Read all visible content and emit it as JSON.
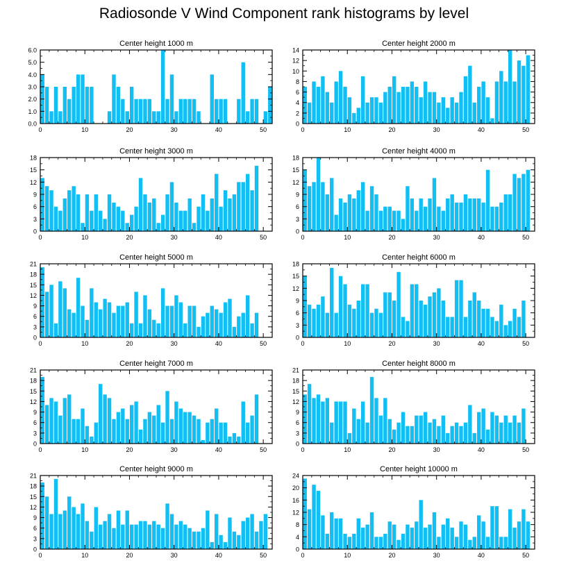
{
  "title": "Radiosonde V Wind Component rank histograms by level",
  "colors": {
    "bar": "#11BFF4",
    "axis": "#000000",
    "background": "#ffffff"
  },
  "chart_data": [
    {
      "type": "bar",
      "title": "Center height 1000 m",
      "xlim": [
        0,
        52
      ],
      "ylim": [
        0,
        6
      ],
      "yticks": [
        "0.0",
        "1.0",
        "2.0",
        "3.0",
        "4.0",
        "5.0",
        "6.0"
      ],
      "ytick_values": [
        0,
        1,
        2,
        3,
        4,
        5,
        6
      ],
      "xticks": [
        "0",
        "10",
        "20",
        "30",
        "40",
        "50"
      ],
      "xtick_values": [
        0,
        10,
        20,
        30,
        40,
        50
      ],
      "values": [
        4,
        3,
        1,
        3,
        1,
        3,
        2,
        3,
        4,
        4,
        3,
        3,
        0,
        0,
        0,
        1,
        4,
        3,
        2,
        1,
        3,
        2,
        2,
        2,
        2,
        1,
        1,
        6,
        2,
        4,
        1,
        2,
        2,
        2,
        2,
        1,
        0,
        0,
        4,
        2,
        2,
        2,
        0,
        0,
        2,
        5,
        1,
        2,
        2,
        0,
        1,
        3
      ]
    },
    {
      "type": "bar",
      "title": "Center height 2000 m",
      "xlim": [
        0,
        52
      ],
      "ylim": [
        0,
        14
      ],
      "yticks": [
        "0",
        "2",
        "4",
        "6",
        "8",
        "10",
        "12",
        "14"
      ],
      "ytick_values": [
        0,
        2,
        4,
        6,
        8,
        10,
        12,
        14
      ],
      "xticks": [
        "0",
        "10",
        "20",
        "30",
        "40",
        "50"
      ],
      "xtick_values": [
        0,
        10,
        20,
        30,
        40,
        50
      ],
      "values": [
        7,
        4,
        8,
        7,
        9,
        6,
        4,
        8,
        10,
        7,
        5,
        2,
        3,
        9,
        4,
        5,
        5,
        4,
        6,
        7,
        9,
        6,
        7,
        7,
        8,
        7,
        5,
        8,
        6,
        6,
        4,
        5,
        3,
        5,
        4,
        6,
        9,
        11,
        4,
        7,
        8,
        5,
        1,
        8,
        10,
        8,
        14,
        8,
        12,
        11,
        13,
        0
      ]
    },
    {
      "type": "bar",
      "title": "Center height 3000 m",
      "xlim": [
        0,
        52
      ],
      "ylim": [
        0,
        18
      ],
      "yticks": [
        "0",
        "3",
        "6",
        "9",
        "12",
        "15",
        "18"
      ],
      "ytick_values": [
        0,
        3,
        6,
        9,
        12,
        15,
        18
      ],
      "xticks": [
        "0",
        "10",
        "20",
        "30",
        "40",
        "50"
      ],
      "xtick_values": [
        0,
        10,
        20,
        30,
        40,
        50
      ],
      "values": [
        13,
        11,
        10,
        6,
        5,
        8,
        10,
        11,
        9,
        2,
        9,
        5,
        9,
        5,
        3,
        9,
        7,
        6,
        5,
        2,
        4,
        6,
        13,
        9,
        7,
        8,
        2,
        4,
        9,
        12,
        7,
        5,
        5,
        8,
        2,
        6,
        9,
        5,
        8,
        14,
        6,
        10,
        8,
        9,
        12,
        12,
        14,
        10,
        16,
        0,
        0,
        0
      ]
    },
    {
      "type": "bar",
      "title": "Center height 4000 m",
      "xlim": [
        0,
        52
      ],
      "ylim": [
        0,
        18
      ],
      "yticks": [
        "0",
        "3",
        "6",
        "9",
        "12",
        "15",
        "18"
      ],
      "ytick_values": [
        0,
        3,
        6,
        9,
        12,
        15,
        18
      ],
      "xticks": [
        "0",
        "10",
        "20",
        "30",
        "40",
        "50"
      ],
      "xtick_values": [
        0,
        10,
        20,
        30,
        40,
        50
      ],
      "values": [
        15,
        11,
        12,
        18,
        12,
        9,
        13,
        4,
        8,
        7,
        9,
        8,
        10,
        12,
        5,
        11,
        9,
        5,
        6,
        6,
        5,
        5,
        3,
        11,
        8,
        5,
        8,
        6,
        8,
        13,
        6,
        5,
        8,
        9,
        7,
        7,
        9,
        8,
        8,
        8,
        7,
        15,
        6,
        6,
        7,
        9,
        9,
        14,
        13,
        14,
        15,
        0
      ]
    },
    {
      "type": "bar",
      "title": "Center height 5000 m",
      "xlim": [
        0,
        52
      ],
      "ylim": [
        0,
        21
      ],
      "yticks": [
        "0",
        "3",
        "6",
        "9",
        "12",
        "15",
        "18",
        "21"
      ],
      "ytick_values": [
        0,
        3,
        6,
        9,
        12,
        15,
        18,
        21
      ],
      "xticks": [
        "0",
        "10",
        "20",
        "30",
        "40",
        "50"
      ],
      "xtick_values": [
        0,
        10,
        20,
        30,
        40,
        50
      ],
      "values": [
        20,
        13,
        15,
        4,
        16,
        14,
        8,
        7,
        17,
        9,
        5,
        14,
        10,
        8,
        11,
        10,
        7,
        9,
        9,
        10,
        4,
        13,
        4,
        12,
        8,
        5,
        4,
        14,
        9,
        9,
        12,
        10,
        4,
        9,
        9,
        3,
        6,
        7,
        9,
        8,
        7,
        10,
        11,
        3,
        6,
        7,
        12,
        4,
        7,
        0,
        0,
        0
      ]
    },
    {
      "type": "bar",
      "title": "Center height 6000 m",
      "xlim": [
        0,
        52
      ],
      "ylim": [
        0,
        18
      ],
      "yticks": [
        "0",
        "3",
        "6",
        "9",
        "12",
        "15",
        "18"
      ],
      "ytick_values": [
        0,
        3,
        6,
        9,
        12,
        15,
        18
      ],
      "xticks": [
        "0",
        "10",
        "20",
        "30",
        "40",
        "50"
      ],
      "xtick_values": [
        0,
        10,
        20,
        30,
        40,
        50
      ],
      "values": [
        15,
        8,
        7,
        8,
        10,
        6,
        17,
        6,
        15,
        13,
        8,
        7,
        9,
        13,
        13,
        6,
        7,
        6,
        11,
        11,
        9,
        16,
        5,
        4,
        13,
        13,
        9,
        8,
        10,
        11,
        12,
        9,
        5,
        5,
        14,
        14,
        5,
        9,
        11,
        9,
        7,
        7,
        5,
        4,
        8,
        3,
        4,
        7,
        5,
        9,
        0,
        0
      ]
    },
    {
      "type": "bar",
      "title": "Center height 7000 m",
      "xlim": [
        0,
        52
      ],
      "ylim": [
        0,
        21
      ],
      "yticks": [
        "0",
        "3",
        "6",
        "9",
        "12",
        "15",
        "18",
        "21"
      ],
      "ytick_values": [
        0,
        3,
        6,
        9,
        12,
        15,
        18,
        21
      ],
      "xticks": [
        "0",
        "10",
        "20",
        "30",
        "40",
        "50"
      ],
      "xtick_values": [
        0,
        10,
        20,
        30,
        40,
        50
      ],
      "values": [
        19,
        11,
        13,
        12,
        8,
        13,
        14,
        7,
        7,
        10,
        5,
        2,
        6,
        17,
        14,
        13,
        7,
        9,
        10,
        7,
        11,
        12,
        4,
        7,
        9,
        8,
        11,
        6,
        15,
        7,
        12,
        10,
        9,
        9,
        8,
        7,
        1,
        6,
        7,
        10,
        6,
        6,
        2,
        3,
        2,
        12,
        6,
        8,
        14,
        0,
        0,
        0
      ]
    },
    {
      "type": "bar",
      "title": "Center height 8000 m",
      "xlim": [
        0,
        52
      ],
      "ylim": [
        0,
        21
      ],
      "yticks": [
        "0",
        "3",
        "6",
        "9",
        "12",
        "15",
        "18",
        "21"
      ],
      "ytick_values": [
        0,
        3,
        6,
        9,
        12,
        15,
        18,
        21
      ],
      "xticks": [
        "0",
        "10",
        "20",
        "30",
        "40",
        "50"
      ],
      "xtick_values": [
        0,
        10,
        20,
        30,
        40,
        50
      ],
      "values": [
        14,
        17,
        13,
        14,
        12,
        13,
        6,
        12,
        12,
        12,
        3,
        10,
        7,
        12,
        6,
        19,
        13,
        8,
        13,
        7,
        4,
        6,
        9,
        5,
        5,
        8,
        8,
        9,
        6,
        7,
        5,
        8,
        3,
        5,
        6,
        5,
        6,
        11,
        3,
        9,
        10,
        4,
        9,
        8,
        6,
        8,
        6,
        8,
        6,
        10,
        0,
        0
      ]
    },
    {
      "type": "bar",
      "title": "Center height 9000 m",
      "xlim": [
        0,
        52
      ],
      "ylim": [
        0,
        21
      ],
      "yticks": [
        "0",
        "3",
        "6",
        "9",
        "12",
        "15",
        "18",
        "21"
      ],
      "ytick_values": [
        0,
        3,
        6,
        9,
        12,
        15,
        18,
        21
      ],
      "xticks": [
        "0",
        "10",
        "20",
        "30",
        "40",
        "50"
      ],
      "xtick_values": [
        0,
        10,
        20,
        30,
        40,
        50
      ],
      "values": [
        19,
        15,
        10,
        20,
        10,
        11,
        15,
        12,
        10,
        13,
        8,
        5,
        12,
        7,
        8,
        10,
        6,
        11,
        7,
        11,
        7,
        7,
        8,
        8,
        7,
        8,
        7,
        6,
        13,
        10,
        7,
        8,
        7,
        6,
        5,
        5,
        6,
        11,
        2,
        10,
        4,
        2,
        9,
        5,
        4,
        8,
        9,
        10,
        5,
        8,
        10,
        0
      ]
    },
    {
      "type": "bar",
      "title": "Center height 10000 m",
      "xlim": [
        0,
        52
      ],
      "ylim": [
        0,
        24
      ],
      "yticks": [
        "0",
        "4",
        "8",
        "12",
        "16",
        "20",
        "24"
      ],
      "ytick_values": [
        0,
        4,
        8,
        12,
        16,
        20,
        24
      ],
      "xticks": [
        "0",
        "10",
        "20",
        "30",
        "40",
        "50"
      ],
      "xtick_values": [
        0,
        10,
        20,
        30,
        40,
        50
      ],
      "values": [
        23,
        13,
        21,
        19,
        11,
        5,
        12,
        10,
        10,
        5,
        4,
        5,
        10,
        7,
        8,
        12,
        4,
        4,
        5,
        9,
        8,
        3,
        5,
        8,
        7,
        9,
        16,
        7,
        8,
        12,
        4,
        8,
        10,
        7,
        4,
        9,
        8,
        3,
        4,
        11,
        9,
        4,
        14,
        14,
        4,
        4,
        13,
        7,
        9,
        13,
        9,
        0
      ]
    }
  ]
}
